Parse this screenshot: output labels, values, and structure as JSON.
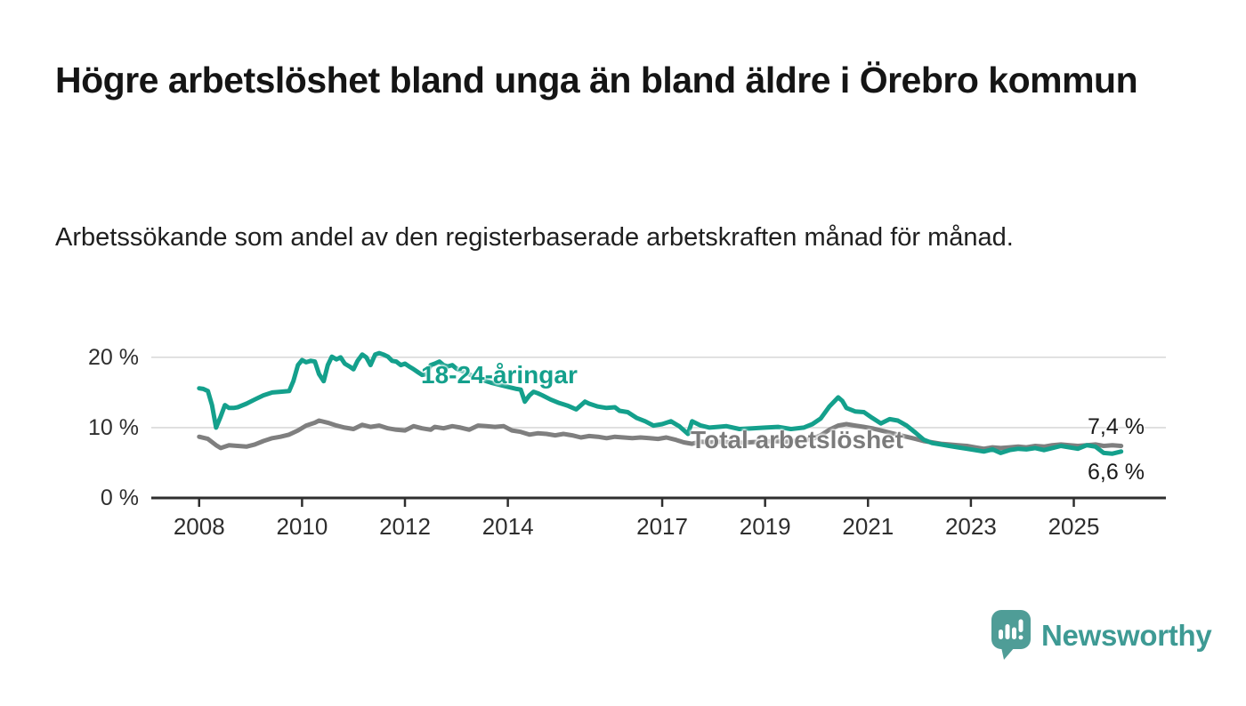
{
  "header": {
    "title": "Högre arbetslöshet bland unga än bland äldre i Örebro kommun",
    "subtitle": "Arbetssökande som andel av den registerbaserade arbetskraften månad för månad."
  },
  "chart_data": {
    "type": "line",
    "title": "Högre arbetslöshet bland unga än bland äldre i Örebro kommun",
    "subtitle": "Arbetssökande som andel av den registerbaserade arbetskraften månad för månad.",
    "xlabel": "",
    "ylabel": "",
    "unit": "%",
    "grid": true,
    "legend_position": "inline-labels-on-lines",
    "xlim": [
      2007.07,
      2026.79
    ],
    "ylim": [
      0,
      21.5
    ],
    "colors": {
      "young": "#14a08c",
      "total": "#7f7f7f",
      "axis": "#2e2e2e",
      "gridline": "#d9d9d9",
      "end_label_text": "#1a1a1a"
    },
    "yticks": [
      {
        "value": 0,
        "label": "0 %"
      },
      {
        "value": 10,
        "label": "10 %"
      },
      {
        "value": 20,
        "label": "20 %"
      }
    ],
    "xticks": [
      {
        "value": 2008,
        "label": "2008"
      },
      {
        "value": 2010,
        "label": "2010"
      },
      {
        "value": 2012,
        "label": "2012"
      },
      {
        "value": 2014,
        "label": "2014"
      },
      {
        "value": 2017,
        "label": "2017"
      },
      {
        "value": 2019,
        "label": "2019"
      },
      {
        "value": 2021,
        "label": "2021"
      },
      {
        "value": 2023,
        "label": "2023"
      },
      {
        "value": 2025,
        "label": "2025"
      }
    ],
    "series": [
      {
        "name": "18-24-åringar",
        "color": "#14a08c",
        "points": [
          [
            2008.0,
            15.6
          ],
          [
            2008.08,
            15.5
          ],
          [
            2008.17,
            15.2
          ],
          [
            2008.25,
            13.2
          ],
          [
            2008.33,
            10.0
          ],
          [
            2008.42,
            11.6
          ],
          [
            2008.5,
            13.2
          ],
          [
            2008.58,
            12.8
          ],
          [
            2008.67,
            12.8
          ],
          [
            2008.75,
            12.9
          ],
          [
            2008.92,
            13.4
          ],
          [
            2009.08,
            14.0
          ],
          [
            2009.25,
            14.6
          ],
          [
            2009.42,
            15.0
          ],
          [
            2009.58,
            15.1
          ],
          [
            2009.75,
            15.2
          ],
          [
            2009.83,
            16.6
          ],
          [
            2009.92,
            18.9
          ],
          [
            2010.0,
            19.6
          ],
          [
            2010.08,
            19.3
          ],
          [
            2010.17,
            19.5
          ],
          [
            2010.25,
            19.4
          ],
          [
            2010.33,
            17.6
          ],
          [
            2010.42,
            16.6
          ],
          [
            2010.5,
            18.9
          ],
          [
            2010.58,
            20.1
          ],
          [
            2010.67,
            19.7
          ],
          [
            2010.75,
            20.0
          ],
          [
            2010.83,
            19.1
          ],
          [
            2010.92,
            18.7
          ],
          [
            2011.0,
            18.3
          ],
          [
            2011.08,
            19.5
          ],
          [
            2011.17,
            20.4
          ],
          [
            2011.25,
            20.0
          ],
          [
            2011.33,
            18.9
          ],
          [
            2011.42,
            20.4
          ],
          [
            2011.5,
            20.6
          ],
          [
            2011.58,
            20.4
          ],
          [
            2011.67,
            20.1
          ],
          [
            2011.75,
            19.5
          ],
          [
            2011.83,
            19.4
          ],
          [
            2011.92,
            18.9
          ],
          [
            2012.0,
            19.1
          ],
          [
            2012.08,
            18.7
          ],
          [
            2012.17,
            18.3
          ],
          [
            2012.25,
            17.9
          ],
          [
            2012.33,
            17.5
          ],
          [
            2012.42,
            17.6
          ],
          [
            2012.5,
            18.9
          ],
          [
            2012.58,
            19.1
          ],
          [
            2012.67,
            19.4
          ],
          [
            2012.75,
            18.9
          ],
          [
            2012.83,
            18.7
          ],
          [
            2012.92,
            18.9
          ],
          [
            2013.0,
            18.4
          ],
          [
            2013.17,
            17.9
          ],
          [
            2013.33,
            17.3
          ],
          [
            2013.5,
            16.8
          ],
          [
            2013.67,
            16.4
          ],
          [
            2013.83,
            16.1
          ],
          [
            2014.0,
            15.8
          ],
          [
            2014.17,
            15.5
          ],
          [
            2014.25,
            15.4
          ],
          [
            2014.33,
            13.7
          ],
          [
            2014.42,
            14.6
          ],
          [
            2014.5,
            15.1
          ],
          [
            2014.58,
            14.9
          ],
          [
            2014.67,
            14.6
          ],
          [
            2014.83,
            14.0
          ],
          [
            2015.0,
            13.5
          ],
          [
            2015.17,
            13.1
          ],
          [
            2015.33,
            12.6
          ],
          [
            2015.5,
            13.7
          ],
          [
            2015.58,
            13.4
          ],
          [
            2015.75,
            13.0
          ],
          [
            2015.92,
            12.8
          ],
          [
            2016.08,
            12.9
          ],
          [
            2016.17,
            12.4
          ],
          [
            2016.33,
            12.2
          ],
          [
            2016.5,
            11.4
          ],
          [
            2016.67,
            10.9
          ],
          [
            2016.83,
            10.3
          ],
          [
            2017.0,
            10.5
          ],
          [
            2017.17,
            10.9
          ],
          [
            2017.33,
            10.2
          ],
          [
            2017.5,
            9.1
          ],
          [
            2017.58,
            10.9
          ],
          [
            2017.75,
            10.3
          ],
          [
            2017.92,
            10.0
          ],
          [
            2018.08,
            10.1
          ],
          [
            2018.25,
            10.2
          ],
          [
            2018.5,
            9.8
          ],
          [
            2018.75,
            9.9
          ],
          [
            2019.0,
            10.0
          ],
          [
            2019.25,
            10.1
          ],
          [
            2019.5,
            9.8
          ],
          [
            2019.75,
            10.0
          ],
          [
            2019.92,
            10.5
          ],
          [
            2020.08,
            11.3
          ],
          [
            2020.25,
            13.0
          ],
          [
            2020.42,
            14.3
          ],
          [
            2020.5,
            13.8
          ],
          [
            2020.58,
            12.8
          ],
          [
            2020.75,
            12.3
          ],
          [
            2020.92,
            12.2
          ],
          [
            2021.08,
            11.4
          ],
          [
            2021.25,
            10.6
          ],
          [
            2021.42,
            11.2
          ],
          [
            2021.58,
            11.0
          ],
          [
            2021.75,
            10.3
          ],
          [
            2021.92,
            9.3
          ],
          [
            2022.08,
            8.3
          ],
          [
            2022.25,
            7.8
          ],
          [
            2022.42,
            7.6
          ],
          [
            2022.58,
            7.4
          ],
          [
            2022.75,
            7.2
          ],
          [
            2022.92,
            7.0
          ],
          [
            2023.08,
            6.8
          ],
          [
            2023.25,
            6.6
          ],
          [
            2023.42,
            6.9
          ],
          [
            2023.58,
            6.4
          ],
          [
            2023.75,
            6.8
          ],
          [
            2023.92,
            7.0
          ],
          [
            2024.08,
            6.9
          ],
          [
            2024.25,
            7.1
          ],
          [
            2024.42,
            6.8
          ],
          [
            2024.58,
            7.1
          ],
          [
            2024.75,
            7.4
          ],
          [
            2024.92,
            7.2
          ],
          [
            2025.08,
            7.0
          ],
          [
            2025.25,
            7.5
          ],
          [
            2025.42,
            7.3
          ],
          [
            2025.58,
            6.4
          ],
          [
            2025.75,
            6.3
          ],
          [
            2025.92,
            6.6
          ]
        ]
      },
      {
        "name": "Total arbetslöshet",
        "color": "#7f7f7f",
        "points": [
          [
            2008.0,
            8.7
          ],
          [
            2008.17,
            8.4
          ],
          [
            2008.33,
            7.5
          ],
          [
            2008.42,
            7.1
          ],
          [
            2008.58,
            7.5
          ],
          [
            2008.75,
            7.4
          ],
          [
            2008.92,
            7.3
          ],
          [
            2009.08,
            7.6
          ],
          [
            2009.25,
            8.1
          ],
          [
            2009.42,
            8.5
          ],
          [
            2009.58,
            8.7
          ],
          [
            2009.75,
            9.0
          ],
          [
            2009.92,
            9.6
          ],
          [
            2010.08,
            10.3
          ],
          [
            2010.25,
            10.7
          ],
          [
            2010.33,
            11.0
          ],
          [
            2010.5,
            10.7
          ],
          [
            2010.67,
            10.3
          ],
          [
            2010.83,
            10.0
          ],
          [
            2011.0,
            9.8
          ],
          [
            2011.17,
            10.4
          ],
          [
            2011.33,
            10.1
          ],
          [
            2011.5,
            10.3
          ],
          [
            2011.67,
            9.9
          ],
          [
            2011.83,
            9.7
          ],
          [
            2012.0,
            9.6
          ],
          [
            2012.17,
            10.2
          ],
          [
            2012.33,
            9.9
          ],
          [
            2012.5,
            9.7
          ],
          [
            2012.58,
            10.1
          ],
          [
            2012.75,
            9.9
          ],
          [
            2012.92,
            10.2
          ],
          [
            2013.08,
            10.0
          ],
          [
            2013.25,
            9.7
          ],
          [
            2013.42,
            10.3
          ],
          [
            2013.58,
            10.2
          ],
          [
            2013.75,
            10.1
          ],
          [
            2013.92,
            10.2
          ],
          [
            2014.08,
            9.6
          ],
          [
            2014.25,
            9.4
          ],
          [
            2014.42,
            9.0
          ],
          [
            2014.58,
            9.2
          ],
          [
            2014.75,
            9.1
          ],
          [
            2014.92,
            8.9
          ],
          [
            2015.08,
            9.1
          ],
          [
            2015.25,
            8.9
          ],
          [
            2015.42,
            8.6
          ],
          [
            2015.58,
            8.8
          ],
          [
            2015.75,
            8.7
          ],
          [
            2015.92,
            8.5
          ],
          [
            2016.08,
            8.7
          ],
          [
            2016.25,
            8.6
          ],
          [
            2016.42,
            8.5
          ],
          [
            2016.58,
            8.6
          ],
          [
            2016.75,
            8.5
          ],
          [
            2016.92,
            8.4
          ],
          [
            2017.08,
            8.6
          ],
          [
            2017.25,
            8.3
          ],
          [
            2017.42,
            7.9
          ],
          [
            2017.58,
            7.7
          ],
          [
            2017.75,
            8.0
          ],
          [
            2017.92,
            7.9
          ],
          [
            2018.17,
            8.0
          ],
          [
            2018.42,
            7.8
          ],
          [
            2018.67,
            7.9
          ],
          [
            2018.92,
            8.0
          ],
          [
            2019.17,
            8.1
          ],
          [
            2019.42,
            8.0
          ],
          [
            2019.67,
            8.2
          ],
          [
            2019.92,
            8.4
          ],
          [
            2020.08,
            8.9
          ],
          [
            2020.25,
            9.7
          ],
          [
            2020.42,
            10.3
          ],
          [
            2020.58,
            10.5
          ],
          [
            2020.75,
            10.3
          ],
          [
            2020.92,
            10.1
          ],
          [
            2021.08,
            9.9
          ],
          [
            2021.25,
            9.6
          ],
          [
            2021.42,
            9.3
          ],
          [
            2021.58,
            9.0
          ],
          [
            2021.75,
            8.7
          ],
          [
            2021.92,
            8.4
          ],
          [
            2022.08,
            8.1
          ],
          [
            2022.25,
            7.9
          ],
          [
            2022.42,
            7.7
          ],
          [
            2022.58,
            7.6
          ],
          [
            2022.75,
            7.5
          ],
          [
            2022.92,
            7.4
          ],
          [
            2023.08,
            7.2
          ],
          [
            2023.25,
            7.0
          ],
          [
            2023.42,
            7.2
          ],
          [
            2023.58,
            7.1
          ],
          [
            2023.75,
            7.2
          ],
          [
            2023.92,
            7.3
          ],
          [
            2024.08,
            7.2
          ],
          [
            2024.25,
            7.4
          ],
          [
            2024.42,
            7.3
          ],
          [
            2024.58,
            7.5
          ],
          [
            2024.75,
            7.6
          ],
          [
            2024.92,
            7.5
          ],
          [
            2025.08,
            7.4
          ],
          [
            2025.25,
            7.5
          ],
          [
            2025.42,
            7.6
          ],
          [
            2025.58,
            7.4
          ],
          [
            2025.75,
            7.5
          ],
          [
            2025.92,
            7.4
          ]
        ]
      }
    ],
    "end_labels": [
      {
        "label": "7,4 %",
        "for_series": "Total arbetslöshet"
      },
      {
        "label": "6,6 %",
        "for_series": "18-24-åringar"
      }
    ]
  },
  "footer": {
    "brand": "Newsworthy"
  }
}
